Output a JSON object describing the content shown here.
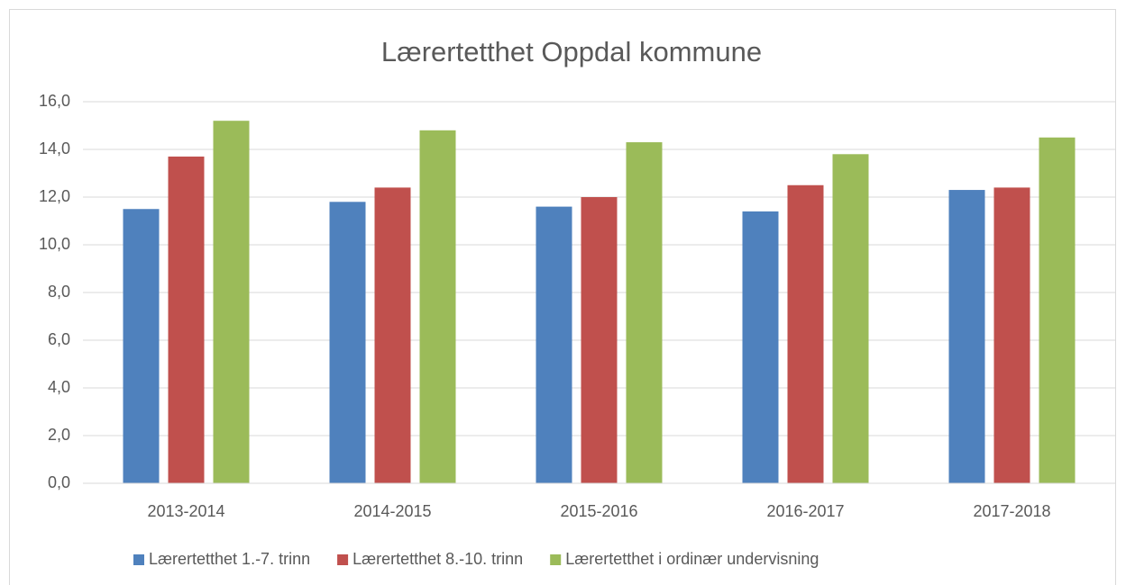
{
  "chart_data": {
    "type": "bar",
    "title": "Lærertetthet Oppdal kommune",
    "categories": [
      "2013-2014",
      "2014-2015",
      "2015-2016",
      "2016-2017",
      "2017-2018"
    ],
    "series": [
      {
        "name": "Lærertetthet 1.-7. trinn",
        "color": "#4f81bd",
        "values": [
          11.5,
          11.8,
          11.6,
          11.4,
          12.3
        ]
      },
      {
        "name": "Lærertetthet 8.-10. trinn",
        "color": "#c0504d",
        "values": [
          13.7,
          12.4,
          12.0,
          12.5,
          12.4
        ]
      },
      {
        "name": "Lærertetthet i ordinær undervisning",
        "color": "#9bbb59",
        "values": [
          15.2,
          14.8,
          14.3,
          13.8,
          14.5
        ]
      }
    ],
    "ylim": [
      0,
      16
    ],
    "yticks": [
      {
        "value": 0,
        "label": "0,0"
      },
      {
        "value": 2,
        "label": "2,0"
      },
      {
        "value": 4,
        "label": "4,0"
      },
      {
        "value": 6,
        "label": "6,0"
      },
      {
        "value": 8,
        "label": "8,0"
      },
      {
        "value": 10,
        "label": "10,0"
      },
      {
        "value": 12,
        "label": "12,0"
      },
      {
        "value": 14,
        "label": "14,0"
      },
      {
        "value": 16,
        "label": "16,0"
      }
    ],
    "grid": true,
    "legend": "bottom"
  }
}
